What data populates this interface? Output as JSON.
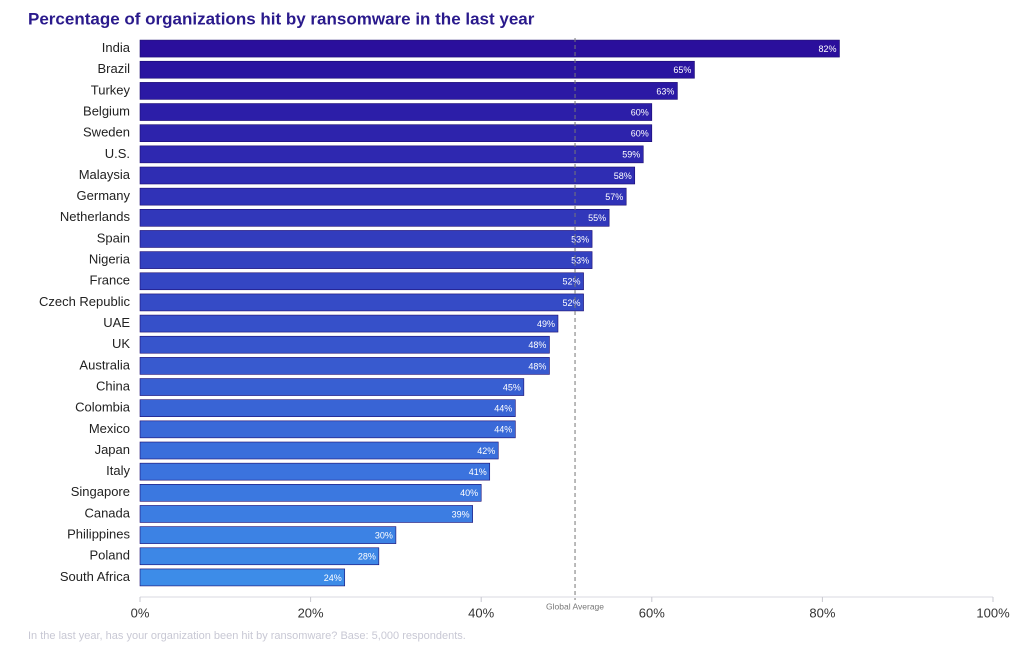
{
  "chart_data": {
    "type": "bar",
    "orientation": "horizontal",
    "title": "Percentage of organizations hit by ransomware in the last year",
    "categories": [
      "India",
      "Brazil",
      "Turkey",
      "Belgium",
      "Sweden",
      "U.S.",
      "Malaysia",
      "Germany",
      "Netherlands",
      "Spain",
      "Nigeria",
      "France",
      "Czech Republic",
      "UAE",
      "UK",
      "Australia",
      "China",
      "Colombia",
      "Mexico",
      "Japan",
      "Italy",
      "Singapore",
      "Canada",
      "Philippines",
      "Poland",
      "South Africa"
    ],
    "values": [
      82,
      65,
      63,
      60,
      60,
      59,
      58,
      57,
      55,
      53,
      53,
      52,
      52,
      49,
      48,
      48,
      45,
      44,
      44,
      42,
      41,
      40,
      39,
      30,
      28,
      24
    ],
    "value_labels": [
      "82%",
      "65%",
      "63%",
      "60%",
      "60%",
      "59%",
      "58%",
      "57%",
      "55%",
      "53%",
      "53%",
      "52%",
      "52%",
      "49%",
      "48%",
      "48%",
      "45%",
      "44%",
      "44%",
      "42%",
      "41%",
      "40%",
      "39%",
      "30%",
      "28%",
      "24%"
    ],
    "colors": [
      "#2a0f9c",
      "#2a14a0",
      "#2b19a4",
      "#2c1ea8",
      "#2d23ac",
      "#2e28b0",
      "#2f2db3",
      "#3032b7",
      "#3137ba",
      "#323cbd",
      "#3341c0",
      "#3446c3",
      "#354bc6",
      "#3650c9",
      "#3755cc",
      "#385acf",
      "#385fd2",
      "#3964d5",
      "#3a69d8",
      "#3a6edb",
      "#3b73de",
      "#3b78e0",
      "#3c7de2",
      "#3c82e4",
      "#3d87e6",
      "#3d8ce8"
    ],
    "xlim": [
      0,
      100
    ],
    "xticks": [
      {
        "value": 0,
        "label": "0%"
      },
      {
        "value": 20,
        "label": "20%"
      },
      {
        "value": 40,
        "label": "40%"
      },
      {
        "value": 60,
        "label": "60%"
      },
      {
        "value": 80,
        "label": "80%"
      },
      {
        "value": 100,
        "label": "100%"
      }
    ],
    "reference_line": {
      "value": 51,
      "label": "Global Average"
    },
    "footnote": "In the last year, has your organization been hit by ransomware? Base: 5,000 respondents."
  }
}
